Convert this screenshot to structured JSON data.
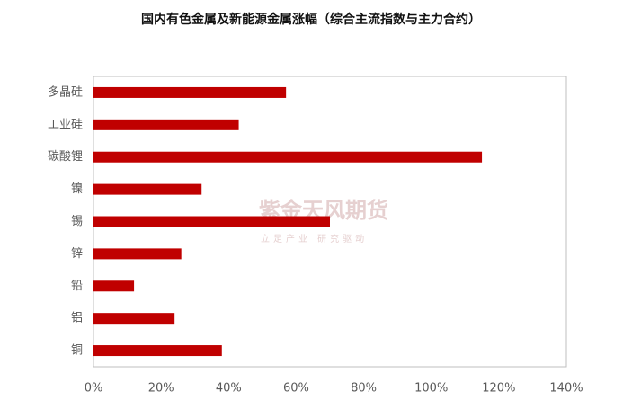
{
  "chart_data": {
    "type": "barh",
    "title": "国内有色金属及新能源金属涨幅（综合主流指数与主力合约）",
    "categories": [
      "多晶硅",
      "工业硅",
      "碳酸锂",
      "镍",
      "锡",
      "锌",
      "铅",
      "铝",
      "铜"
    ],
    "values": [
      57,
      43,
      115,
      32,
      70,
      26,
      12,
      24,
      38
    ],
    "color": "#c00000",
    "xlim": [
      0,
      140
    ],
    "xticks": [
      {
        "value": 0,
        "label": "0%"
      },
      {
        "value": 20,
        "label": "20%"
      },
      {
        "value": 40,
        "label": "40%"
      },
      {
        "value": 60,
        "label": "60%"
      },
      {
        "value": 80,
        "label": "80%"
      },
      {
        "value": 100,
        "label": "100%"
      },
      {
        "value": 120,
        "label": "120%"
      },
      {
        "value": 140,
        "label": "140%"
      }
    ],
    "grid": false,
    "watermark": "紫金天风期货",
    "watermark_subtitle": "立足产业 研究驱动"
  }
}
